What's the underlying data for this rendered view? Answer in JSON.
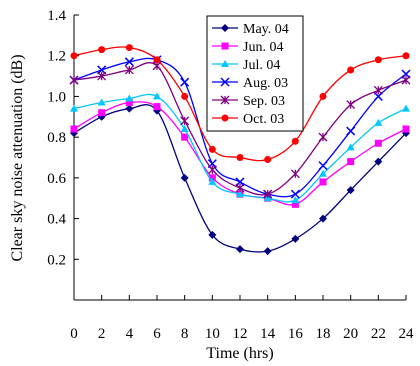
{
  "chart_data": {
    "type": "line",
    "xlabel": "Time (hrs)",
    "ylabel": "Clear sky noise attenuation (dB)",
    "xlim": [
      0,
      24
    ],
    "ylim": [
      0,
      1.4
    ],
    "xticks": [
      0,
      2,
      4,
      6,
      8,
      10,
      12,
      14,
      16,
      18,
      20,
      22,
      24
    ],
    "yticks": [
      0.2,
      0.4,
      0.6,
      0.8,
      1.0,
      1.2,
      1.4
    ],
    "ytick_labels": [
      "0.2",
      "0.4",
      "0.6",
      "0.8",
      "1.0",
      "1.2",
      "1.4"
    ],
    "grid": false,
    "legend": "top-center",
    "x": [
      0,
      2,
      4,
      6,
      8,
      10,
      12,
      14,
      16,
      18,
      20,
      22,
      24
    ],
    "series": [
      {
        "name": "May. 04",
        "color": "#000080",
        "marker": "diamond",
        "values": [
          0.82,
          0.9,
          0.94,
          0.93,
          0.6,
          0.32,
          0.25,
          0.24,
          0.3,
          0.4,
          0.54,
          0.68,
          0.82
        ]
      },
      {
        "name": "Jun. 04",
        "color": "#ff00ff",
        "marker": "square",
        "values": [
          0.84,
          0.92,
          0.97,
          0.95,
          0.8,
          0.6,
          0.52,
          0.5,
          0.47,
          0.58,
          0.68,
          0.77,
          0.84
        ]
      },
      {
        "name": "Jul. 04",
        "color": "#00c8ff",
        "marker": "triangle",
        "values": [
          0.94,
          0.97,
          0.99,
          1.0,
          0.84,
          0.58,
          0.52,
          0.5,
          0.49,
          0.62,
          0.75,
          0.87,
          0.94
        ]
      },
      {
        "name": "Aug. 03",
        "color": "#0000ff",
        "marker": "x",
        "values": [
          1.08,
          1.13,
          1.17,
          1.18,
          1.07,
          0.67,
          0.58,
          0.52,
          0.52,
          0.66,
          0.83,
          1.0,
          1.11
        ]
      },
      {
        "name": "Sep. 03",
        "color": "#800080",
        "marker": "star",
        "values": [
          1.08,
          1.1,
          1.13,
          1.15,
          0.88,
          0.64,
          0.55,
          0.52,
          0.62,
          0.8,
          0.96,
          1.03,
          1.08
        ]
      },
      {
        "name": "Oct. 03",
        "color": "#ff0000",
        "marker": "circle",
        "values": [
          1.2,
          1.23,
          1.24,
          1.18,
          1.0,
          0.74,
          0.7,
          0.69,
          0.78,
          1.0,
          1.13,
          1.18,
          1.2
        ]
      }
    ]
  }
}
